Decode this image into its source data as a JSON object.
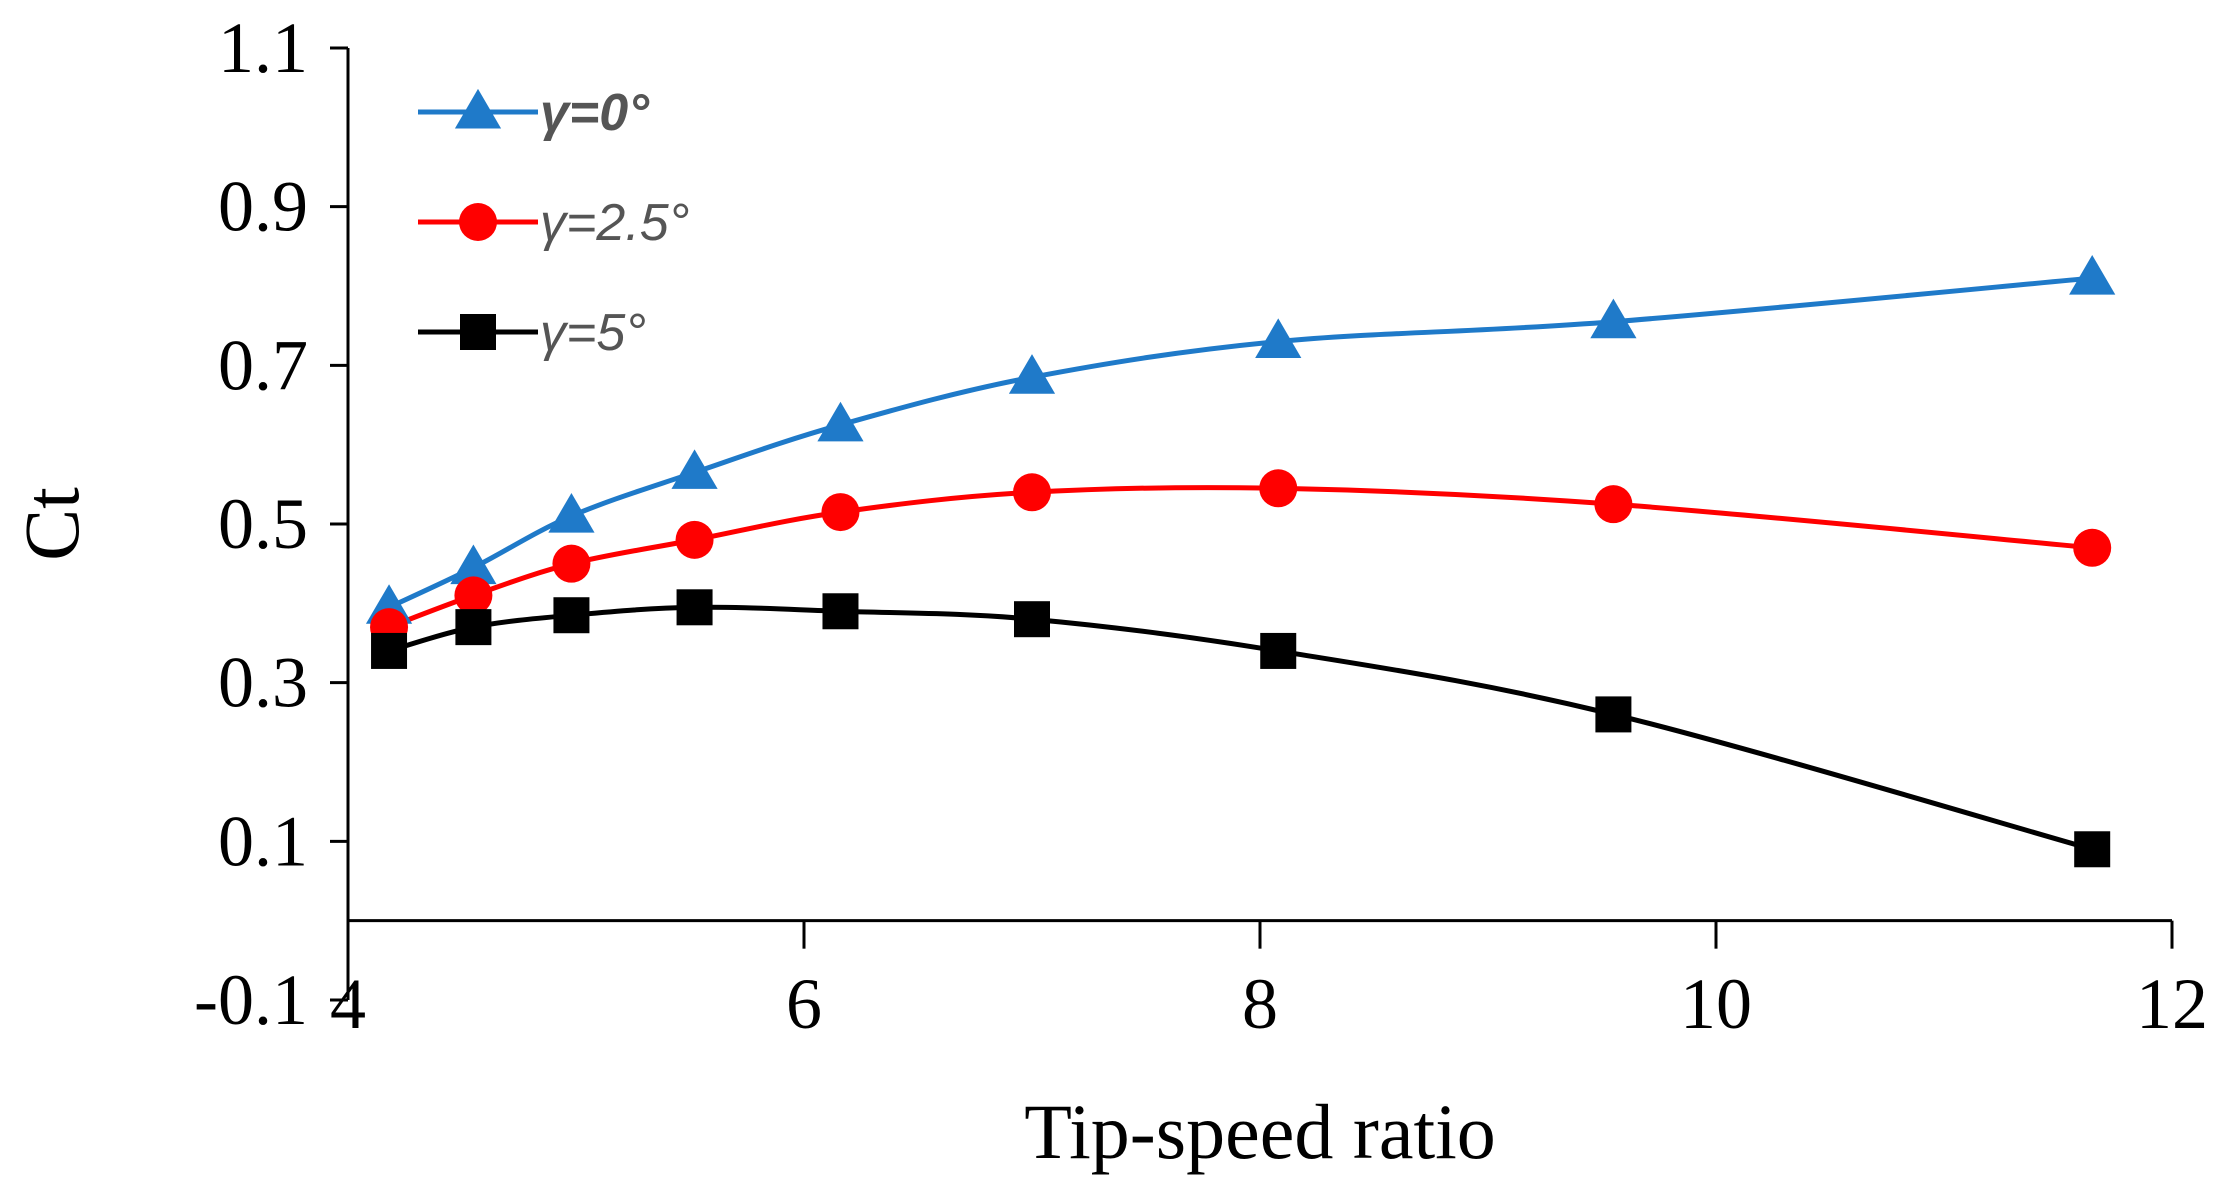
{
  "chart_data": {
    "type": "line",
    "title": "",
    "xlabel": "Tip-speed ratio",
    "ylabel": "Ct",
    "xlim": [
      4,
      12
    ],
    "ylim": [
      -0.1,
      1.1
    ],
    "xticks": [
      "4",
      "6",
      "8",
      "10",
      "12"
    ],
    "yticks": [
      "1.1",
      "0.9",
      "0.7",
      "0.5",
      "0.3",
      "0.1",
      "-0.1"
    ],
    "legend_position": "top-left",
    "grid": false,
    "series": [
      {
        "name": "γ=0°",
        "color": "#1f7ac9",
        "marker": "triangle",
        "x": [
          4.18,
          4.55,
          4.98,
          5.52,
          6.16,
          7.0,
          8.08,
          9.55,
          11.65
        ],
        "y": [
          0.395,
          0.445,
          0.51,
          0.565,
          0.625,
          0.685,
          0.73,
          0.755,
          0.81
        ]
      },
      {
        "name": "γ=2.5°",
        "color": "#ff0000",
        "marker": "circle",
        "x": [
          4.18,
          4.55,
          4.98,
          5.52,
          6.16,
          7.0,
          8.08,
          9.55,
          11.65
        ],
        "y": [
          0.37,
          0.41,
          0.45,
          0.48,
          0.515,
          0.54,
          0.545,
          0.525,
          0.47
        ]
      },
      {
        "name": "γ=5°",
        "color": "#000000",
        "marker": "square",
        "x": [
          4.18,
          4.55,
          4.98,
          5.52,
          6.16,
          7.0,
          8.08,
          9.55,
          11.65
        ],
        "y": [
          0.34,
          0.37,
          0.385,
          0.395,
          0.39,
          0.38,
          0.34,
          0.26,
          0.09
        ]
      }
    ]
  }
}
